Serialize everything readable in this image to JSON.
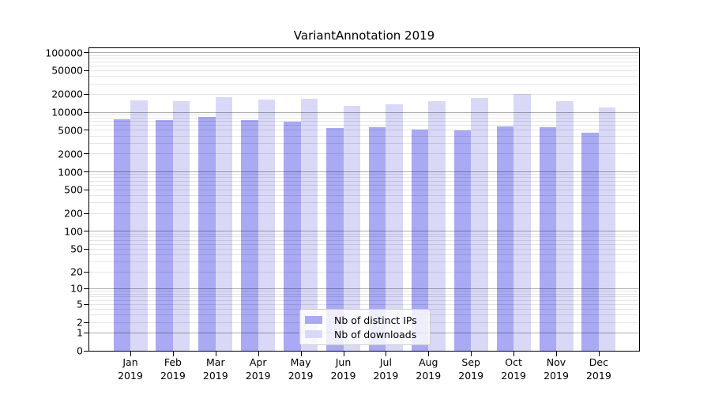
{
  "title": "VariantAnnotation 2019",
  "year": "2019",
  "chart_data": {
    "type": "bar",
    "title": "VariantAnnotation 2019",
    "categories": [
      "Jan",
      "Feb",
      "Mar",
      "Apr",
      "May",
      "Jun",
      "Jul",
      "Aug",
      "Sep",
      "Oct",
      "Nov",
      "Dec"
    ],
    "year": "2019",
    "series": [
      {
        "name": "Nb of distinct IPs",
        "color": "#a9a9f4",
        "values": [
          7500,
          7200,
          8200,
          7300,
          6800,
          5400,
          5500,
          5100,
          4900,
          5700,
          5500,
          4500
        ]
      },
      {
        "name": "Nb of downloads",
        "color": "#d9d9f7",
        "values": [
          15500,
          15100,
          17500,
          16000,
          16400,
          12600,
          13200,
          15000,
          17100,
          19800,
          15100,
          11700
        ]
      }
    ],
    "yscale": "log10(1+x)",
    "yticks": [
      0,
      1,
      2,
      5,
      10,
      20,
      50,
      100,
      200,
      500,
      1000,
      2000,
      5000,
      10000,
      20000,
      50000,
      100000
    ],
    "ylim": [
      0,
      120000
    ],
    "xlabel": "",
    "ylabel": "",
    "grid": "horizontal major+minor",
    "legend_position": "inside bottom-center"
  }
}
